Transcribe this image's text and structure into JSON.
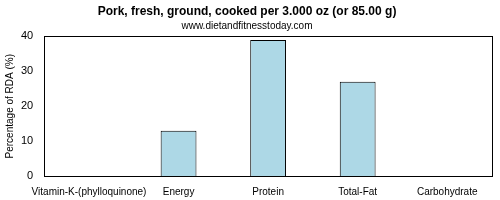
{
  "chart_data": {
    "type": "bar",
    "title": "Pork, fresh, ground, cooked per 3.000 oz (or 85.00 g)",
    "subtitle": "www.dietandfitnesstoday.com",
    "y_label": "Percentage of RDA (%)",
    "categories": [
      "Vitamin-K-(phylloquinone)",
      "Energy",
      "Protein",
      "Total-Fat",
      "Carbohydrate"
    ],
    "values": [
      0,
      13,
      39,
      27,
      0
    ],
    "color": "#add8e6",
    "ylim": [
      0,
      40
    ],
    "yticks": [
      0,
      10,
      20,
      30,
      40
    ],
    "grid": false
  }
}
